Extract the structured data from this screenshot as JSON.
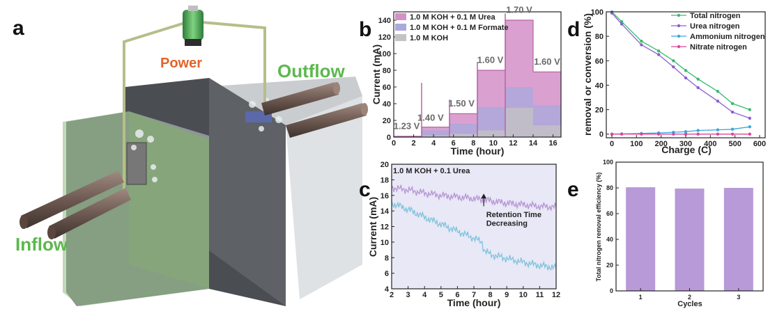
{
  "panels": {
    "a": "a",
    "b": "b",
    "c": "c",
    "d": "d",
    "e": "e"
  },
  "schematic": {
    "power": "Power",
    "outflow": "Outflow",
    "inflow": "Inflow"
  },
  "colors": {
    "urea": "#d491c8",
    "formate": "#aaa9db",
    "koh": "#c3c3c3",
    "purple_line": "#b694d4",
    "cyan_line": "#7ec3dc",
    "green": "#3bba71",
    "violet": "#8a5fd0",
    "blue": "#3aa7dd",
    "magenta": "#e0449b",
    "bar": "#b89ad8"
  },
  "chart_data": [
    {
      "id": "b",
      "type": "area",
      "title": "",
      "xlabel": "Time (hour)",
      "ylabel": "Current (mA)",
      "xlim": [
        0,
        16.8
      ],
      "ylim": [
        0,
        150
      ],
      "xticks": [
        0,
        2,
        4,
        6,
        8,
        10,
        12,
        14,
        16
      ],
      "yticks": [
        0,
        20,
        40,
        60,
        80,
        100,
        120,
        140
      ],
      "legend": [
        "1.0 M KOH + 0.1 M Urea",
        "1.0 M KOH + 0.1 M Formate",
        "1.0 M KOH"
      ],
      "voltage_labels": [
        "1.23 V",
        "1.40 V",
        "1.50 V",
        "1.60 V",
        "1.70 V",
        "1.60 V"
      ],
      "segments": [
        {
          "t": [
            0,
            2.8
          ],
          "urea": 1,
          "formate": 1,
          "koh": 0.5
        },
        {
          "t": [
            2.8,
            5.6
          ],
          "urea": 12,
          "formate": 8,
          "koh": 2
        },
        {
          "t": [
            5.6,
            8.4
          ],
          "urea": 28,
          "formate": 16,
          "koh": 4
        },
        {
          "t": [
            8.4,
            11.2
          ],
          "urea": 80,
          "formate": 36,
          "koh": 8
        },
        {
          "t": [
            11.2,
            14
          ],
          "urea": 140,
          "formate": 60,
          "koh": 35
        },
        {
          "t": [
            14,
            16.8
          ],
          "urea": 78,
          "formate": 38,
          "koh": 14
        }
      ],
      "spikes": [
        {
          "t": 2.8,
          "v": 65
        },
        {
          "t": 5.6,
          "v": 45
        },
        {
          "t": 8.4,
          "v": 90
        },
        {
          "t": 11.2,
          "v": 148
        }
      ]
    },
    {
      "id": "c",
      "type": "line",
      "xlabel": "Time (hour)",
      "ylabel": "Current (mA)",
      "xlim": [
        2,
        12
      ],
      "ylim": [
        4,
        20
      ],
      "xticks": [
        2,
        3,
        4,
        5,
        6,
        7,
        8,
        9,
        10,
        11,
        12
      ],
      "yticks": [
        4,
        6,
        8,
        10,
        12,
        14,
        16,
        18,
        20
      ],
      "legend": "1.0 M KOH + 0.1 Urea",
      "annotation": [
        "Retention Time",
        "Decreasing"
      ],
      "series": [
        {
          "name": "urea",
          "x": [
            2,
            3,
            4,
            5,
            6,
            7,
            8,
            9,
            10,
            11,
            12
          ],
          "y": [
            17.0,
            16.7,
            16.3,
            16.0,
            15.8,
            15.6,
            15.3,
            15.0,
            14.8,
            14.6,
            14.5
          ]
        },
        {
          "name": "control",
          "x": [
            2,
            3,
            4,
            5,
            6,
            7,
            7.5,
            7.6,
            8,
            9,
            10,
            11,
            12
          ],
          "y": [
            15.0,
            14.2,
            13.2,
            12.3,
            11.4,
            10.5,
            10.0,
            9.0,
            8.4,
            7.9,
            7.4,
            7.0,
            6.7
          ]
        }
      ]
    },
    {
      "id": "d",
      "type": "line",
      "xlabel": "Charge (C)",
      "ylabel": "removal or conversion (%)",
      "xlim": [
        0,
        600
      ],
      "ylim": [
        -3,
        100
      ],
      "xticks": [
        0,
        100,
        200,
        300,
        400,
        500,
        600
      ],
      "yticks": [
        0,
        20,
        40,
        60,
        80,
        100
      ],
      "x": [
        0,
        40,
        120,
        190,
        250,
        300,
        350,
        430,
        490,
        560
      ],
      "series": [
        {
          "name": "Total nitrogen",
          "values": [
            100,
            92,
            76,
            68,
            60,
            52,
            45,
            35,
            25,
            20
          ]
        },
        {
          "name": "Urea nitrogen",
          "values": [
            99,
            90,
            73,
            65,
            55,
            46,
            38,
            27,
            18,
            13
          ]
        },
        {
          "name": "Ammonium nitrogen",
          "values": [
            0,
            0.2,
            0.5,
            1,
            1.5,
            2,
            3,
            3.5,
            4,
            6
          ]
        },
        {
          "name": "Nitrate nitrogen",
          "values": [
            0,
            0,
            0,
            0,
            0,
            0,
            0,
            0,
            0,
            0
          ]
        }
      ]
    },
    {
      "id": "e",
      "type": "bar",
      "xlabel": "Cycles",
      "ylabel": "Total nitrogen removal efficiency (%)",
      "categories": [
        "1",
        "2",
        "3"
      ],
      "values": [
        80.5,
        79.5,
        80
      ],
      "ylim": [
        0,
        100
      ],
      "yticks": [
        0,
        20,
        40,
        60,
        80,
        100
      ]
    }
  ]
}
